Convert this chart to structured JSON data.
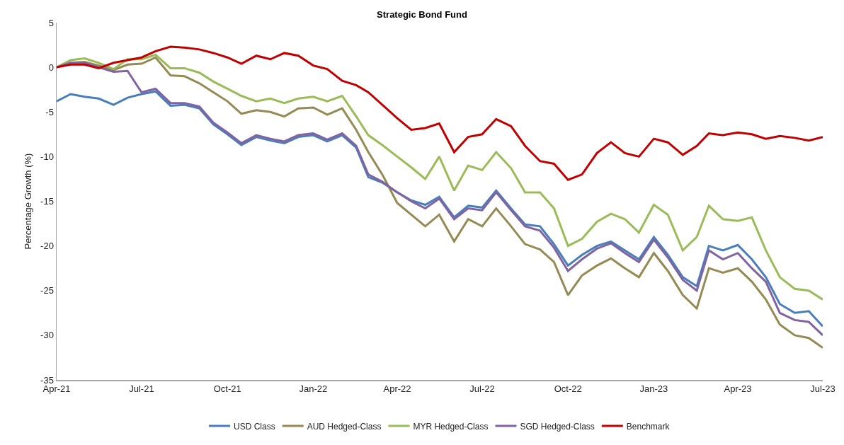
{
  "chart_data": {
    "type": "line",
    "title": "Strategic Bond Fund",
    "ylabel": "Percentage Growth (%)",
    "x": [
      "2021-04-01",
      "2021-04-16",
      "2021-05-01",
      "2021-05-16",
      "2021-06-01",
      "2021-06-16",
      "2021-07-01",
      "2021-07-16",
      "2021-08-01",
      "2021-08-16",
      "2021-09-01",
      "2021-09-16",
      "2021-10-01",
      "2021-10-16",
      "2021-11-01",
      "2021-11-16",
      "2021-12-01",
      "2021-12-16",
      "2022-01-01",
      "2022-01-16",
      "2022-02-01",
      "2022-02-16",
      "2022-03-01",
      "2022-03-16",
      "2022-04-01",
      "2022-04-16",
      "2022-05-01",
      "2022-05-16",
      "2022-06-01",
      "2022-06-16",
      "2022-07-01",
      "2022-07-16",
      "2022-08-01",
      "2022-08-16",
      "2022-09-01",
      "2022-09-16",
      "2022-10-01",
      "2022-10-16",
      "2022-11-01",
      "2022-11-16",
      "2022-12-01",
      "2022-12-16",
      "2023-01-01",
      "2023-01-16",
      "2023-02-01",
      "2023-02-16",
      "2023-03-01",
      "2023-03-16",
      "2023-04-01",
      "2023-04-16",
      "2023-05-01",
      "2023-05-16",
      "2023-06-01",
      "2023-06-16",
      "2023-07-01"
    ],
    "series": [
      {
        "name": "USD Class",
        "color": "#4a7ebb",
        "values": [
          -3.8,
          -3.0,
          -3.3,
          -3.5,
          -4.2,
          -3.4,
          -3.0,
          -2.7,
          -4.3,
          -4.2,
          -4.6,
          -6.4,
          -7.5,
          -8.7,
          -7.8,
          -8.2,
          -8.5,
          -7.8,
          -7.6,
          -8.3,
          -7.6,
          -9.0,
          -12.3,
          -12.9,
          -14.0,
          -14.9,
          -15.4,
          -14.5,
          -16.8,
          -15.5,
          -15.7,
          -13.8,
          -15.8,
          -17.6,
          -17.8,
          -19.8,
          -22.2,
          -21.0,
          -20.0,
          -19.5,
          -20.5,
          -21.5,
          -19.0,
          -21.0,
          -23.5,
          -24.5,
          -20.0,
          -20.5,
          -19.9,
          -21.5,
          -23.5,
          -26.5,
          -27.5,
          -27.3,
          -29.0
        ]
      },
      {
        "name": "AUD Hedged-Class",
        "color": "#948a54",
        "values": [
          0,
          0.5,
          0.6,
          0.2,
          -0.3,
          0.3,
          0.4,
          1.1,
          -0.9,
          -1.0,
          -1.8,
          -2.8,
          -3.8,
          -5.2,
          -4.8,
          -5.0,
          -5.5,
          -4.6,
          -4.5,
          -5.3,
          -4.6,
          -7.0,
          -9.5,
          -12.0,
          -15.2,
          -16.5,
          -17.8,
          -16.5,
          -19.5,
          -17.0,
          -17.8,
          -15.8,
          -17.8,
          -19.8,
          -20.4,
          -21.8,
          -25.5,
          -23.3,
          -22.2,
          -21.4,
          -22.5,
          -23.5,
          -20.8,
          -22.8,
          -25.5,
          -27.0,
          -22.5,
          -23.0,
          -22.5,
          -24.0,
          -26.0,
          -28.8,
          -30.0,
          -30.3,
          -31.4
        ]
      },
      {
        "name": "MYR Hedged-Class",
        "color": "#9bbb59",
        "values": [
          0,
          0.8,
          1.0,
          0.5,
          -0.2,
          0.9,
          0.9,
          1.4,
          -0.1,
          -0.1,
          -0.6,
          -1.6,
          -2.4,
          -3.2,
          -3.8,
          -3.5,
          -4.0,
          -3.5,
          -3.3,
          -3.8,
          -3.2,
          -5.5,
          -7.6,
          -8.7,
          -10.0,
          -11.2,
          -12.5,
          -10.0,
          -13.8,
          -11.0,
          -11.5,
          -9.5,
          -11.3,
          -14.0,
          -14.0,
          -15.8,
          -20.0,
          -19.2,
          -17.3,
          -16.4,
          -17.0,
          -18.5,
          -15.4,
          -16.5,
          -20.5,
          -19.0,
          -15.5,
          -17.0,
          -17.2,
          -16.8,
          -20.5,
          -23.5,
          -24.8,
          -25.0,
          -26.0
        ]
      },
      {
        "name": "SGD Hedged-Class",
        "color": "#8064a2",
        "values": [
          0,
          0.5,
          0.5,
          0.0,
          -0.5,
          -0.4,
          -2.8,
          -2.4,
          -4.0,
          -4.0,
          -4.4,
          -6.2,
          -7.3,
          -8.5,
          -7.6,
          -8.0,
          -8.3,
          -7.6,
          -7.4,
          -8.1,
          -7.4,
          -8.8,
          -12.0,
          -12.8,
          -14.0,
          -15.0,
          -15.8,
          -14.7,
          -17.0,
          -15.8,
          -16.0,
          -14.0,
          -16.0,
          -17.8,
          -18.3,
          -20.2,
          -22.8,
          -21.5,
          -20.3,
          -19.7,
          -20.8,
          -21.8,
          -19.3,
          -21.3,
          -23.8,
          -25.0,
          -20.5,
          -21.5,
          -20.8,
          -22.5,
          -24.0,
          -27.5,
          -28.3,
          -28.5,
          -30.0
        ]
      },
      {
        "name": "Benchmark",
        "color": "#c00000",
        "values": [
          0,
          0.3,
          0.3,
          -0.1,
          0.5,
          0.8,
          1.1,
          1.8,
          2.3,
          2.2,
          2.0,
          1.6,
          1.1,
          0.4,
          1.3,
          0.9,
          1.6,
          1.3,
          0.2,
          -0.2,
          -1.5,
          -2.0,
          -2.8,
          -4.2,
          -5.7,
          -7.0,
          -6.8,
          -6.3,
          -9.5,
          -7.8,
          -7.5,
          -5.8,
          -6.6,
          -8.8,
          -10.5,
          -10.8,
          -12.6,
          -12.0,
          -9.6,
          -8.4,
          -9.6,
          -10.0,
          -8.0,
          -8.4,
          -9.8,
          -8.8,
          -7.4,
          -7.6,
          -7.3,
          -7.5,
          -8.0,
          -7.7,
          -7.9,
          -8.2,
          -7.8
        ]
      }
    ],
    "xlim": [
      "2021-04-01",
      "2023-07-01"
    ],
    "xticks": [
      {
        "value": "2021-04-01",
        "label": "Apr-21"
      },
      {
        "value": "2021-07-01",
        "label": "Jul-21"
      },
      {
        "value": "2021-10-01",
        "label": "Oct-21"
      },
      {
        "value": "2022-01-01",
        "label": "Jan-22"
      },
      {
        "value": "2022-04-01",
        "label": "Apr-22"
      },
      {
        "value": "2022-07-01",
        "label": "Jul-22"
      },
      {
        "value": "2022-10-01",
        "label": "Oct-22"
      },
      {
        "value": "2023-01-01",
        "label": "Jan-23"
      },
      {
        "value": "2023-04-01",
        "label": "Apr-23"
      },
      {
        "value": "2023-07-01",
        "label": "Jul-23"
      }
    ],
    "ylim": [
      -35,
      5
    ],
    "yticks": [
      -35,
      -30,
      -25,
      -20,
      -15,
      -10,
      -5,
      0,
      5
    ],
    "grid": false,
    "legend": "bottom",
    "marker": "none",
    "line_style": "solid"
  }
}
